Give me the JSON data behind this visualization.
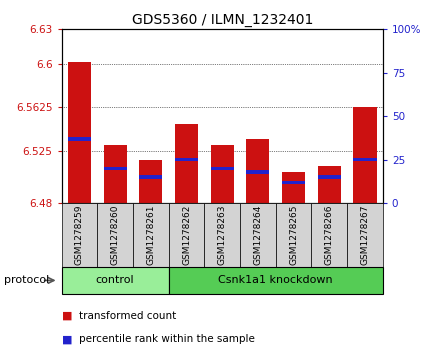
{
  "title": "GDS5360 / ILMN_1232401",
  "samples": [
    "GSM1278259",
    "GSM1278260",
    "GSM1278261",
    "GSM1278262",
    "GSM1278263",
    "GSM1278264",
    "GSM1278265",
    "GSM1278266",
    "GSM1278267"
  ],
  "transformed_counts": [
    6.602,
    6.53,
    6.517,
    6.548,
    6.53,
    6.535,
    6.507,
    6.512,
    6.563
  ],
  "percentile_ranks": [
    37,
    20,
    15,
    25,
    20,
    18,
    12,
    15,
    25
  ],
  "ylim_left": [
    6.48,
    6.63
  ],
  "yticks_left": [
    6.48,
    6.525,
    6.5625,
    6.6,
    6.63
  ],
  "yticks_right": [
    0,
    25,
    50,
    75,
    100
  ],
  "bar_color": "#cc1111",
  "percentile_color": "#2222cc",
  "bar_width": 0.65,
  "groups": [
    {
      "label": "control",
      "start": 0,
      "end": 3,
      "color": "#99ee99"
    },
    {
      "label": "Csnk1a1 knockdown",
      "start": 3,
      "end": 9,
      "color": "#55cc55"
    }
  ],
  "protocol_label": "protocol",
  "legend_items": [
    {
      "label": "transformed count",
      "color": "#cc1111"
    },
    {
      "label": "percentile rank within the sample",
      "color": "#2222cc"
    }
  ],
  "grid_color": "black",
  "background_color": "#ffffff",
  "plot_bg_color": "#ffffff",
  "tick_label_color_left": "#cc1111",
  "tick_label_color_right": "#2222cc",
  "title_fontsize": 10,
  "axis_fontsize": 7.5,
  "sample_fontsize": 6.5,
  "group_fontsize": 8,
  "legend_fontsize": 7.5
}
